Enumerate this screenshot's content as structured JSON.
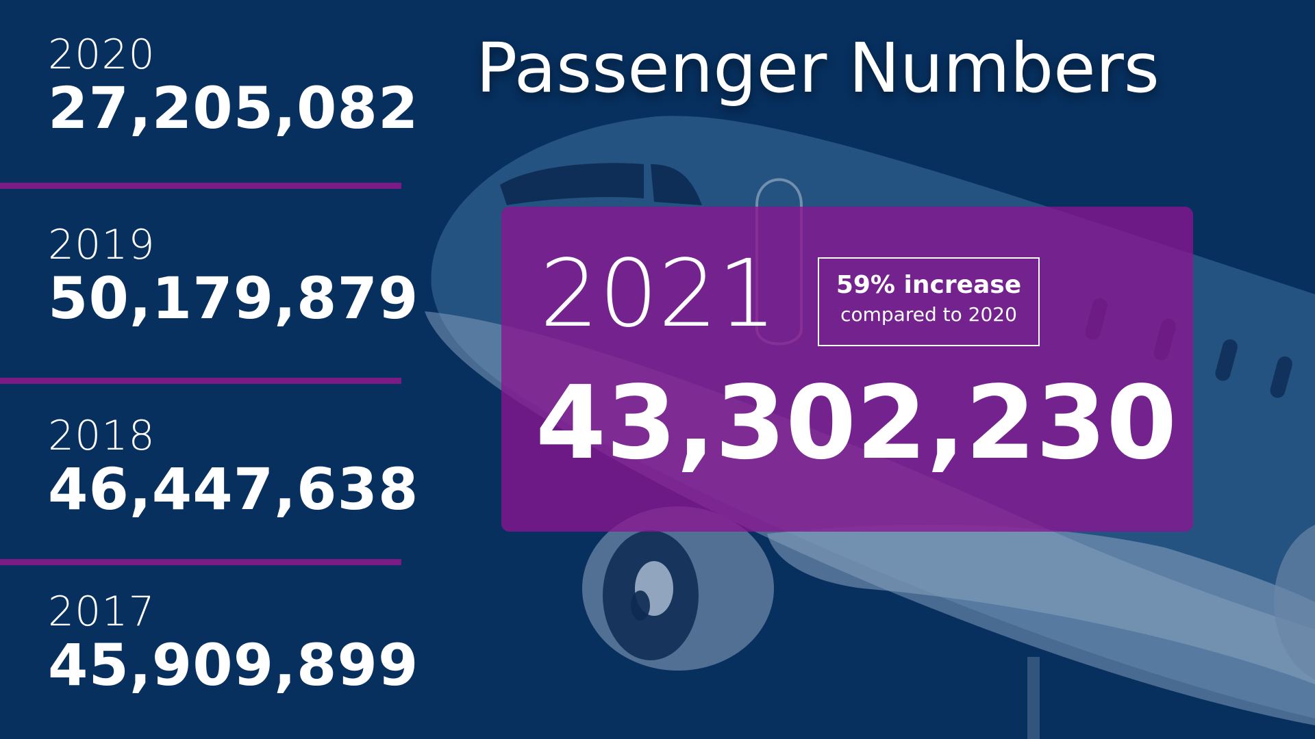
{
  "title": "Passenger Numbers",
  "history": [
    {
      "year": "2020",
      "passengers": "27,205,082"
    },
    {
      "year": "2019",
      "passengers": "50,179,879"
    },
    {
      "year": "2018",
      "passengers": "46,447,638"
    },
    {
      "year": "2017",
      "passengers": "45,909,899"
    }
  ],
  "highlight": {
    "year": "2021",
    "passengers": "43,302,230",
    "badge_main": "59% increase",
    "badge_sub": "compared to 2020"
  },
  "icons": {
    "background": "airplane-illustration"
  },
  "colors": {
    "background": "#07305f",
    "accent": "#7a1b86",
    "card": "#8a1491",
    "text": "#ffffff"
  }
}
